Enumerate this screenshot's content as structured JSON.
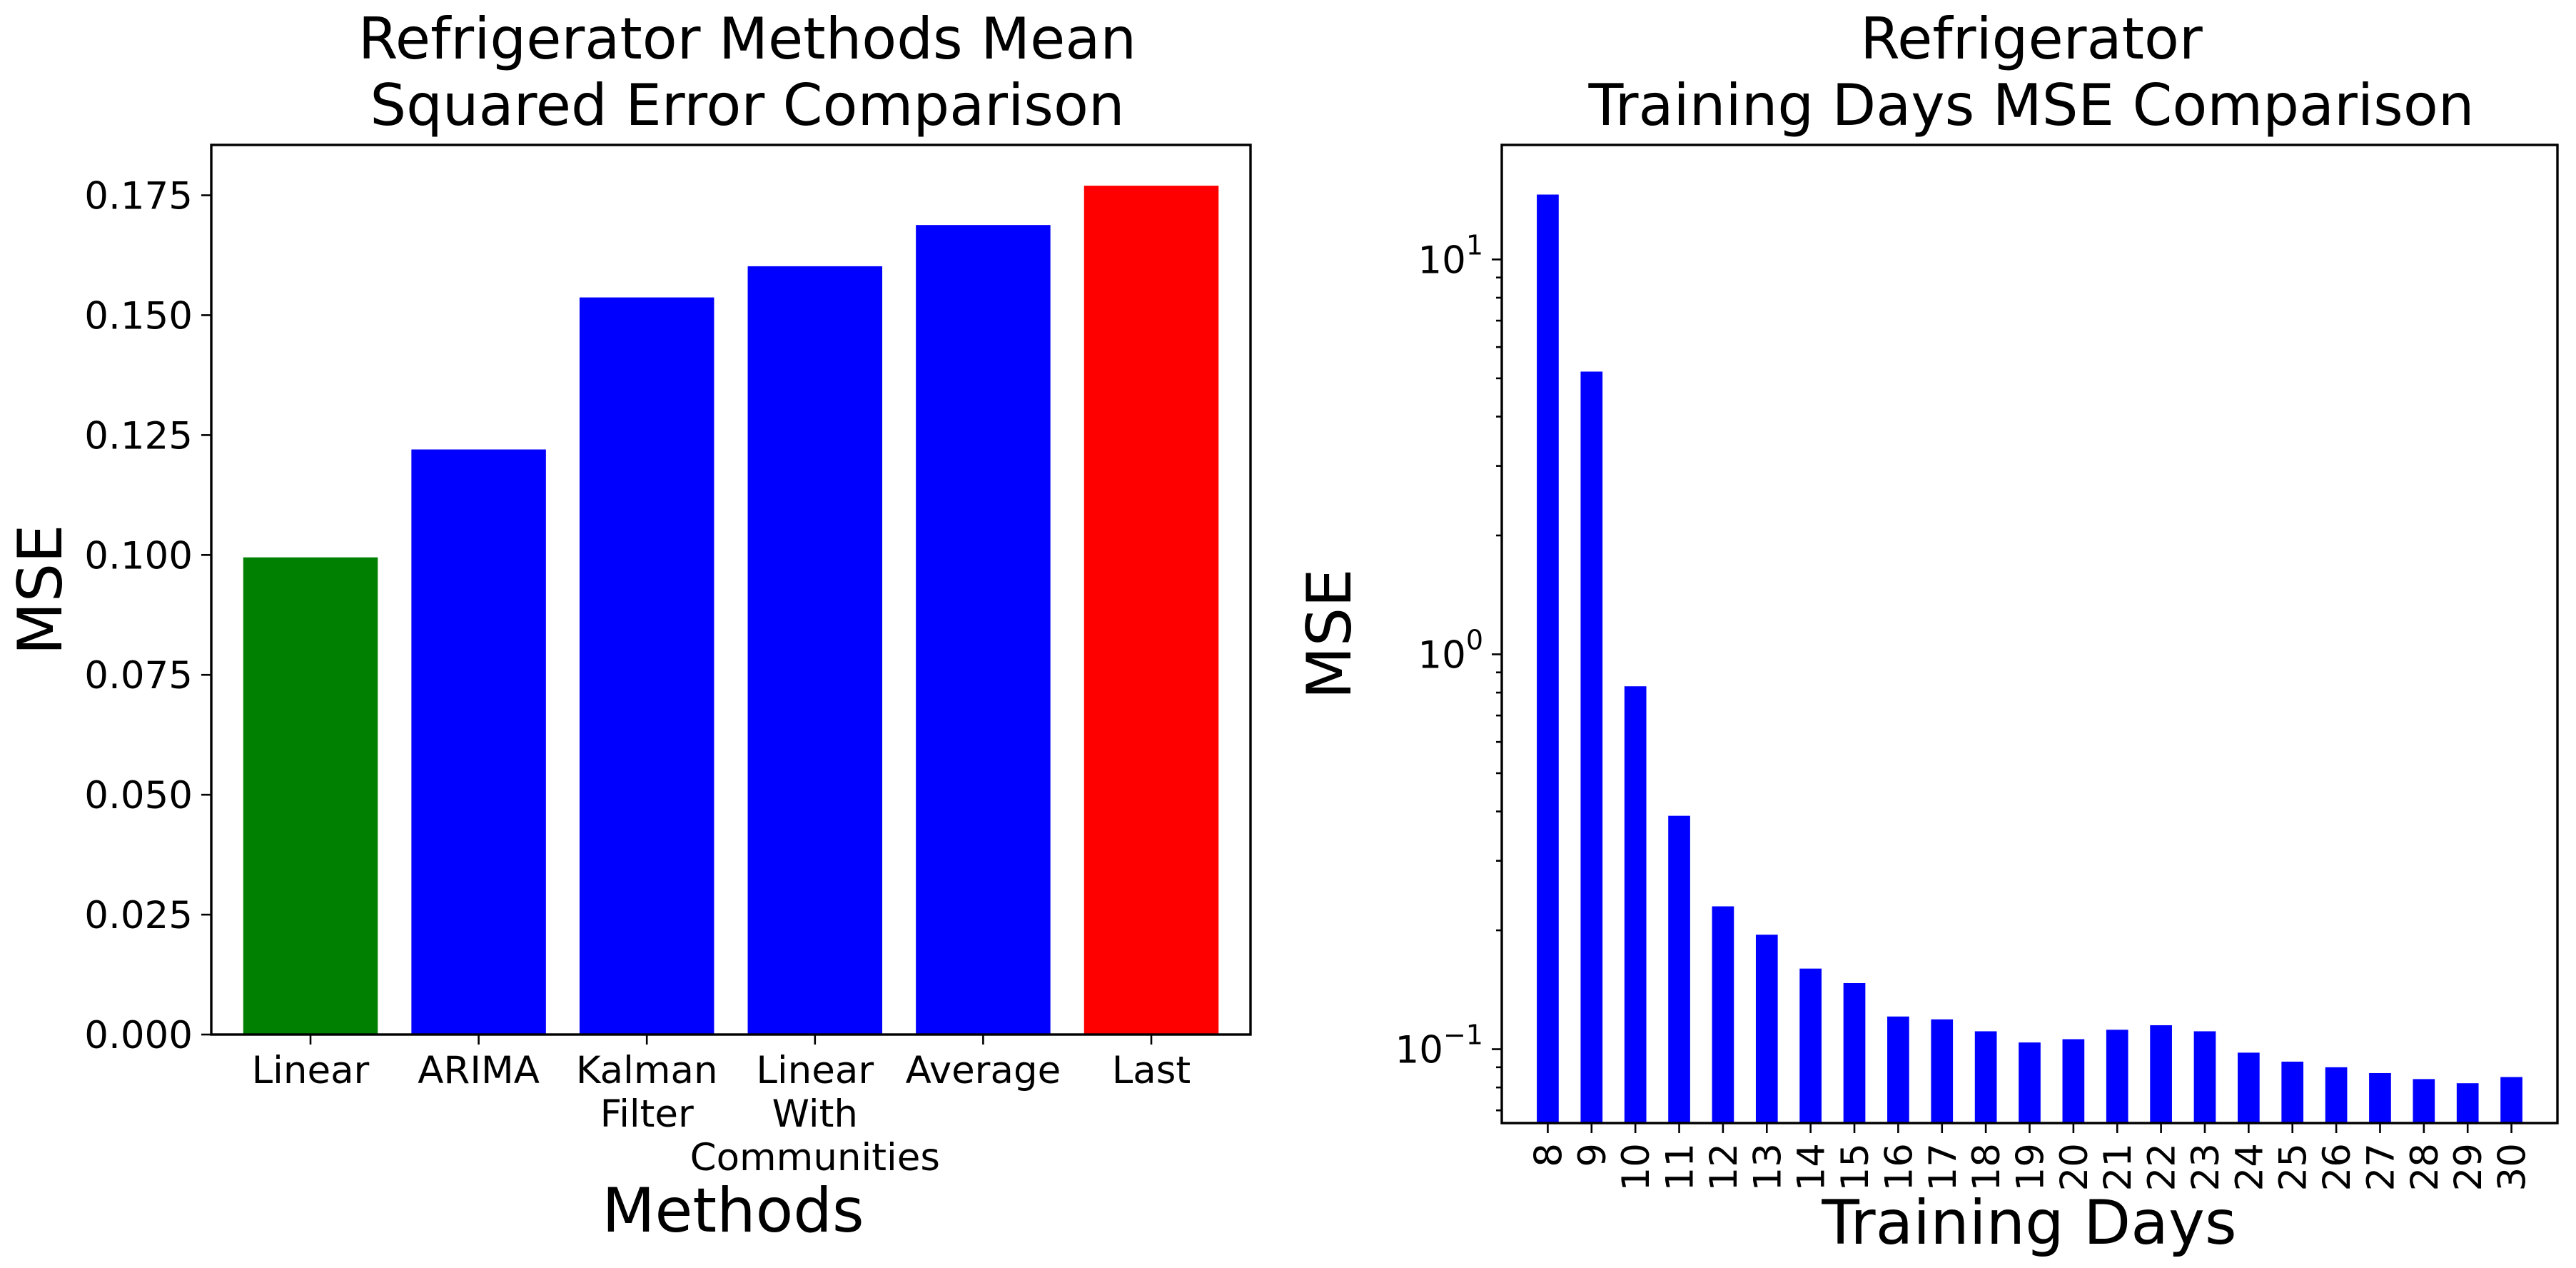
{
  "chart_data": [
    {
      "type": "bar",
      "title": [
        "Refrigerator Methods Mean",
        "Squared Error Comparison"
      ],
      "xlabel": "Methods",
      "ylabel": "MSE",
      "categories": [
        [
          "Linear"
        ],
        [
          "ARIMA"
        ],
        [
          "Kalman",
          "Filter"
        ],
        [
          "Linear",
          "With",
          "Communities"
        ],
        [
          "Average"
        ],
        [
          "Last"
        ]
      ],
      "values": [
        0.0995,
        0.122,
        0.1537,
        0.1602,
        0.1688,
        0.177
      ],
      "colors": [
        "#008000",
        "#0000ff",
        "#0000ff",
        "#0000ff",
        "#0000ff",
        "#ff0000"
      ],
      "yticks": [
        "0.000",
        "0.025",
        "0.050",
        "0.075",
        "0.100",
        "0.125",
        "0.150",
        "0.175"
      ],
      "ylim": [
        0,
        0.1855
      ],
      "grid": false
    },
    {
      "type": "bar",
      "title": [
        "Refrigerator",
        "Training Days MSE Comparison"
      ],
      "xlabel": "Training Days",
      "ylabel": "MSE",
      "yscale": "log",
      "categories": [
        "8",
        "9",
        "10",
        "11",
        "12",
        "13",
        "14",
        "15",
        "16",
        "17",
        "18",
        "19",
        "20",
        "21",
        "22",
        "23",
        "24",
        "25",
        "26",
        "27",
        "28",
        "29",
        "30"
      ],
      "values": [
        14.6,
        5.2,
        0.83,
        0.39,
        0.23,
        0.195,
        0.16,
        0.147,
        0.121,
        0.119,
        0.111,
        0.104,
        0.106,
        0.112,
        0.115,
        0.111,
        0.098,
        0.093,
        0.09,
        0.087,
        0.084,
        0.082,
        0.085
      ],
      "color": "#0000ff",
      "yticks": [
        {
          "base": "10",
          "exp": "−1",
          "value": 0.1
        },
        {
          "base": "10",
          "exp": "0",
          "value": 1
        },
        {
          "base": "10",
          "exp": "1",
          "value": 10
        }
      ],
      "ylim": [
        0.065,
        19.5
      ],
      "grid": false
    }
  ]
}
